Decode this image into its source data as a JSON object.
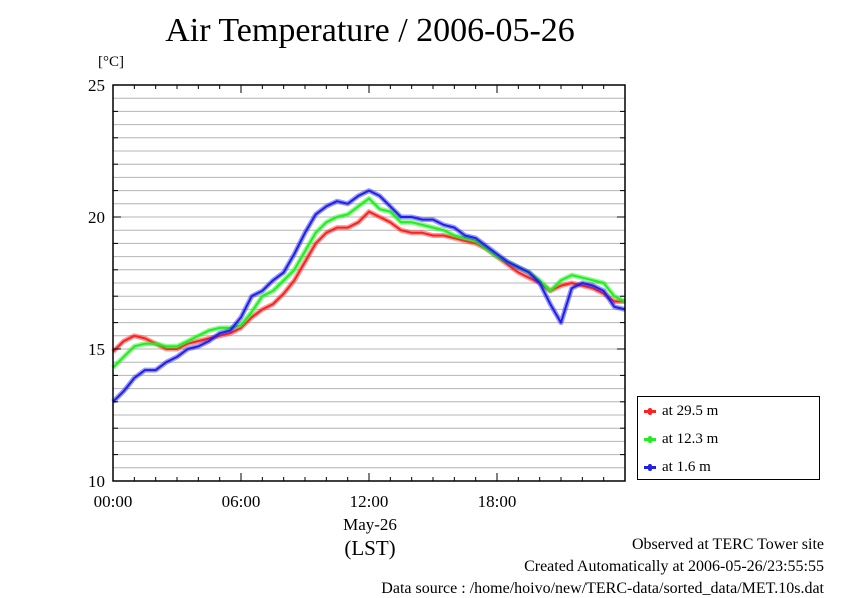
{
  "chart_data": {
    "type": "line",
    "title": "Air Temperature / 2006-05-26",
    "y_unit_label": "[°C]",
    "ylim": [
      10,
      25
    ],
    "y_ticks": [
      10,
      15,
      20,
      25
    ],
    "y_minor_step": 1,
    "xlim": [
      0,
      24
    ],
    "x_ticks": [
      {
        "value": 0,
        "label": "00:00"
      },
      {
        "value": 6,
        "label": "06:00"
      },
      {
        "value": 12,
        "label": "12:00"
      },
      {
        "value": 18,
        "label": "18:00"
      }
    ],
    "x_date_label": "May-26",
    "x_axis_label": "(LST)",
    "grid": "horizontal",
    "legend_position": "right-bottom",
    "series": [
      {
        "name": "at 29.5 m",
        "color": "#ff2020",
        "x": [
          0,
          0.5,
          1.0,
          1.5,
          2.0,
          2.5,
          3.0,
          3.5,
          4.0,
          4.5,
          5.0,
          5.5,
          6.0,
          6.5,
          7.0,
          7.5,
          8.0,
          8.5,
          9.0,
          9.5,
          10.0,
          10.5,
          11.0,
          11.5,
          12.0,
          12.5,
          13.0,
          13.5,
          14.0,
          14.5,
          15.0,
          15.5,
          16.0,
          16.5,
          17.0,
          17.5,
          18.0,
          18.5,
          19.0,
          19.5,
          20.0,
          20.5,
          21.0,
          21.5,
          22.0,
          22.5,
          23.0,
          23.5,
          24.0
        ],
        "values": [
          14.9,
          15.3,
          15.5,
          15.4,
          15.2,
          15.0,
          15.0,
          15.2,
          15.3,
          15.4,
          15.5,
          15.6,
          15.8,
          16.2,
          16.5,
          16.7,
          17.1,
          17.6,
          18.3,
          19.0,
          19.4,
          19.6,
          19.6,
          19.8,
          20.2,
          20.0,
          19.8,
          19.5,
          19.4,
          19.4,
          19.3,
          19.3,
          19.2,
          19.1,
          19.0,
          18.8,
          18.5,
          18.2,
          17.9,
          17.7,
          17.5,
          17.2,
          17.4,
          17.5,
          17.4,
          17.3,
          17.1,
          16.8,
          16.8
        ]
      },
      {
        "name": "at 12.3 m",
        "color": "#20ee20",
        "x": [
          0,
          0.5,
          1.0,
          1.5,
          2.0,
          2.5,
          3.0,
          3.5,
          4.0,
          4.5,
          5.0,
          5.5,
          6.0,
          6.5,
          7.0,
          7.5,
          8.0,
          8.5,
          9.0,
          9.5,
          10.0,
          10.5,
          11.0,
          11.5,
          12.0,
          12.5,
          13.0,
          13.5,
          14.0,
          14.5,
          15.0,
          15.5,
          16.0,
          16.5,
          17.0,
          17.5,
          18.0,
          18.5,
          19.0,
          19.5,
          20.0,
          20.5,
          21.0,
          21.5,
          22.0,
          22.5,
          23.0,
          23.5,
          24.0
        ],
        "values": [
          14.3,
          14.7,
          15.1,
          15.2,
          15.2,
          15.1,
          15.1,
          15.3,
          15.5,
          15.7,
          15.8,
          15.8,
          15.9,
          16.4,
          17.0,
          17.2,
          17.6,
          18.0,
          18.7,
          19.4,
          19.8,
          20.0,
          20.1,
          20.4,
          20.7,
          20.3,
          20.2,
          19.8,
          19.8,
          19.7,
          19.6,
          19.5,
          19.3,
          19.2,
          19.1,
          18.8,
          18.5,
          18.3,
          18.1,
          17.9,
          17.6,
          17.2,
          17.6,
          17.8,
          17.7,
          17.6,
          17.5,
          17.0,
          16.8
        ]
      },
      {
        "name": "at 1.6 m",
        "color": "#2020ee",
        "x": [
          0,
          0.5,
          1.0,
          1.5,
          2.0,
          2.5,
          3.0,
          3.5,
          4.0,
          4.5,
          5.0,
          5.5,
          6.0,
          6.5,
          7.0,
          7.5,
          8.0,
          8.5,
          9.0,
          9.5,
          10.0,
          10.5,
          11.0,
          11.5,
          12.0,
          12.5,
          13.0,
          13.5,
          14.0,
          14.5,
          15.0,
          15.5,
          16.0,
          16.5,
          17.0,
          17.5,
          18.0,
          18.5,
          19.0,
          19.5,
          20.0,
          20.5,
          21.0,
          21.5,
          22.0,
          22.5,
          23.0,
          23.5,
          24.0
        ],
        "values": [
          13.0,
          13.4,
          13.9,
          14.2,
          14.2,
          14.5,
          14.7,
          15.0,
          15.1,
          15.3,
          15.6,
          15.7,
          16.2,
          17.0,
          17.2,
          17.6,
          17.9,
          18.6,
          19.4,
          20.1,
          20.4,
          20.6,
          20.5,
          20.8,
          21.0,
          20.8,
          20.4,
          20.0,
          20.0,
          19.9,
          19.9,
          19.7,
          19.6,
          19.3,
          19.2,
          18.9,
          18.6,
          18.3,
          18.1,
          17.9,
          17.5,
          16.7,
          16.0,
          17.3,
          17.5,
          17.4,
          17.2,
          16.6,
          16.5
        ]
      }
    ]
  },
  "footer": {
    "line1": "Observed at TERC Tower site",
    "line2": "Created Automatically at 2006-05-26/23:55:55",
    "line3": "Data source : /home/hoivo/new/TERC-data/sorted_data/MET.10s.dat"
  }
}
